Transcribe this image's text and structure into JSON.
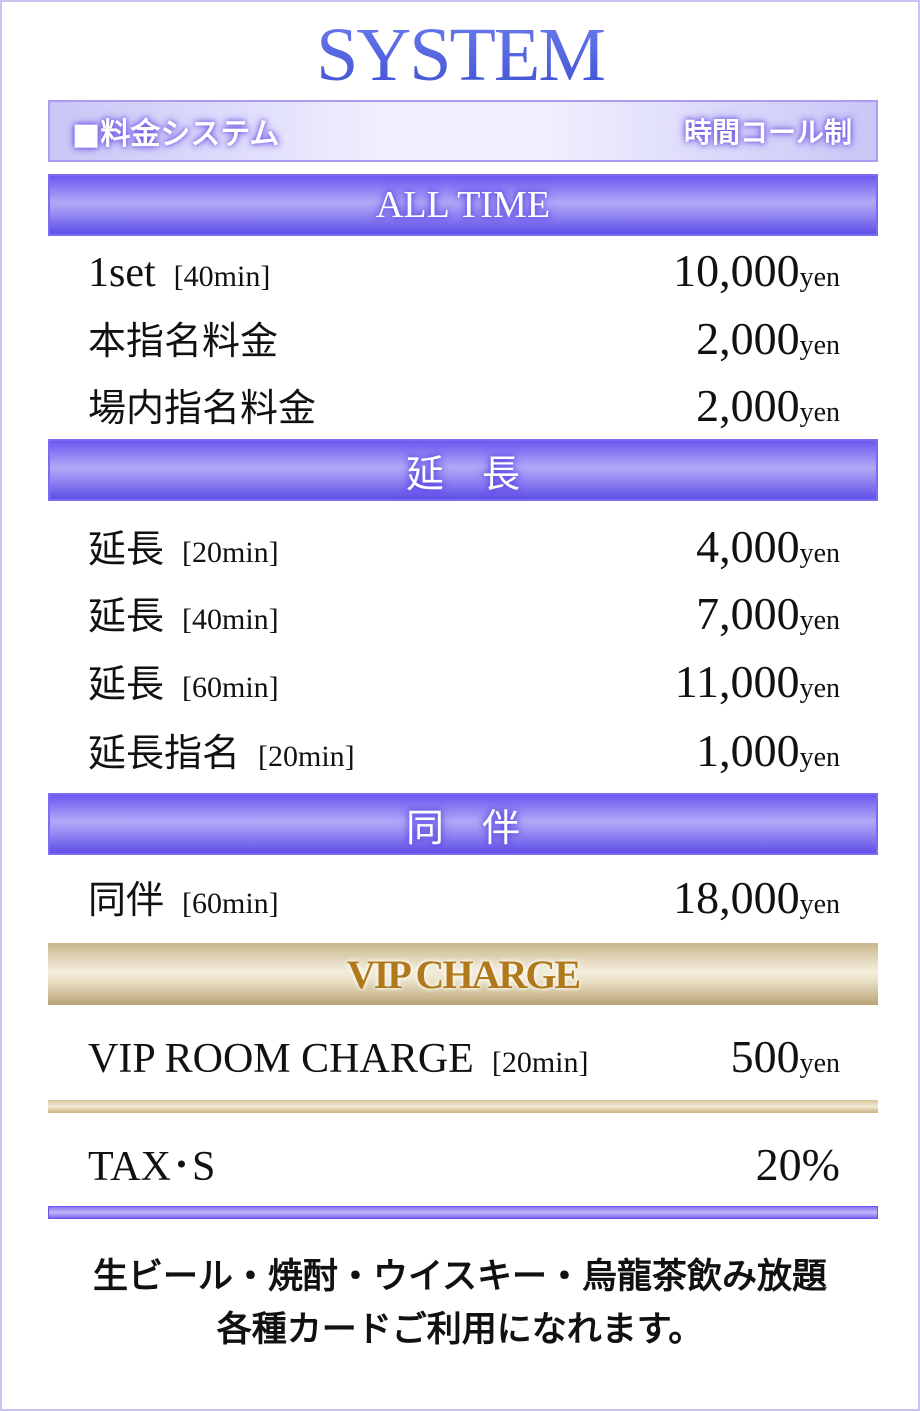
{
  "title": "SYSTEM",
  "header": {
    "left": "■料金システム",
    "right": "時間コール制"
  },
  "sections": {
    "all_time": {
      "title": "ALL TIME",
      "rows": [
        {
          "label": "1set",
          "bracket": "[40min]",
          "price": "10,000",
          "unit": "yen"
        },
        {
          "label": "本指名料金",
          "bracket": "",
          "price": "2,000",
          "unit": "yen"
        },
        {
          "label": "場内指名料金",
          "bracket": "",
          "price": "2,000",
          "unit": "yen"
        }
      ]
    },
    "extension": {
      "title": "延　長",
      "rows": [
        {
          "label": "延長",
          "bracket": "[20min]",
          "price": "4,000",
          "unit": "yen"
        },
        {
          "label": "延長",
          "bracket": "[40min]",
          "price": "7,000",
          "unit": "yen"
        },
        {
          "label": "延長",
          "bracket": "[60min]",
          "price": "11,000",
          "unit": "yen"
        },
        {
          "label": "延長指名",
          "bracket": "[20min]",
          "price": "1,000",
          "unit": "yen"
        }
      ]
    },
    "dohan": {
      "title": "同　伴",
      "rows": [
        {
          "label": "同伴",
          "bracket": "[60min]",
          "price": "18,000",
          "unit": "yen"
        }
      ]
    },
    "vip": {
      "title": "VIP CHARGE",
      "rows": [
        {
          "label": "VIP ROOM CHARGE",
          "bracket": "[20min]",
          "price": "500",
          "unit": "yen"
        }
      ]
    }
  },
  "tax": {
    "label": "TAX･S",
    "value": "20%"
  },
  "footer": {
    "line1": "生ビール・焼酎・ウイスキー・烏龍茶飲み放題",
    "line2": "各種カードご利用になれます。"
  },
  "colors": {
    "title": "#4f5fdc",
    "purple_bar": "#7d6bf2",
    "gold_bar": "#c9b78c",
    "vip_text": "#b07a1c"
  }
}
